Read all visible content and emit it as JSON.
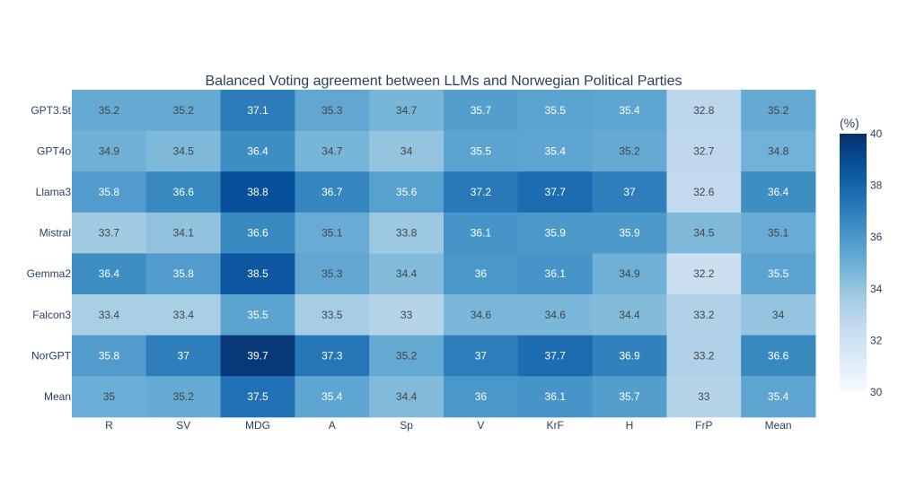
{
  "chart_data": {
    "type": "heatmap",
    "title": "Balanced Voting agreement between LLMs and Norwegian Political Parties",
    "x_categories": [
      "R",
      "SV",
      "MDG",
      "A",
      "Sp",
      "V",
      "KrF",
      "H",
      "FrP",
      "Mean"
    ],
    "y_categories": [
      "GPT3.5t",
      "GPT4o",
      "Llama3",
      "Mistral",
      "Gemma2",
      "Falcon3",
      "NorGPT",
      "Mean"
    ],
    "values": [
      [
        35.2,
        35.2,
        37.1,
        35.3,
        34.7,
        35.7,
        35.5,
        35.4,
        32.8,
        35.2
      ],
      [
        34.9,
        34.5,
        36.4,
        34.7,
        34,
        35.5,
        35.4,
        35.2,
        32.7,
        34.8
      ],
      [
        35.8,
        36.6,
        38.8,
        36.7,
        35.6,
        37.2,
        37.7,
        37,
        32.6,
        36.4
      ],
      [
        33.7,
        34.1,
        36.6,
        35.1,
        33.8,
        36.1,
        35.9,
        35.9,
        34.5,
        35.1
      ],
      [
        36.4,
        35.8,
        38.5,
        35.3,
        34.4,
        36,
        36.1,
        34.9,
        32.2,
        35.5
      ],
      [
        33.4,
        33.4,
        35.5,
        33.5,
        33,
        34.6,
        34.6,
        34.4,
        33.2,
        34
      ],
      [
        35.8,
        37,
        39.7,
        37.3,
        35.2,
        37,
        37.7,
        36.9,
        33.2,
        36.6
      ],
      [
        35,
        35.2,
        37.5,
        35.4,
        34.4,
        36,
        36.1,
        35.7,
        33,
        35.4
      ]
    ],
    "colorscale": "Blues",
    "zmin": 30,
    "zmax": 40,
    "colorbar": {
      "title": "(%)",
      "ticks": [
        30,
        32,
        34,
        36,
        38,
        40
      ]
    },
    "grid": false
  }
}
